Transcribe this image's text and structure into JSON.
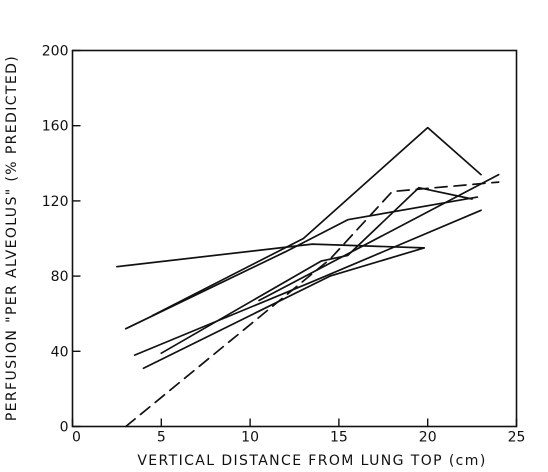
{
  "chart_data": {
    "type": "line",
    "title": "",
    "xlabel": "VERTICAL DISTANCE FROM LUNG TOP (cm)",
    "ylabel": "PERFUSION \"PER ALVEOLUS\" (% PREDICTED)",
    "xlim": [
      0,
      25
    ],
    "ylim": [
      0,
      200
    ],
    "xticks": [
      0,
      5,
      10,
      15,
      20,
      25
    ],
    "yticks": [
      0,
      40,
      80,
      120,
      160,
      200
    ],
    "grid": false,
    "series": [
      {
        "style": "solid",
        "x": [
          2.5,
          13.5,
          19.8
        ],
        "y": [
          85,
          97,
          95
        ]
      },
      {
        "style": "solid",
        "x": [
          3.0,
          12.0,
          15.5,
          22.8
        ],
        "y": [
          52,
          93,
          110,
          122
        ]
      },
      {
        "style": "solid",
        "x": [
          4.5,
          13.0,
          20.0,
          23.0
        ],
        "y": [
          59,
          100,
          159,
          134
        ]
      },
      {
        "style": "solid",
        "x": [
          5.0,
          14.0,
          15.5,
          19.5,
          22.5
        ],
        "y": [
          39,
          88,
          91,
          127,
          121
        ]
      },
      {
        "style": "solid",
        "x": [
          4.0,
          14.5,
          19.8
        ],
        "y": [
          31,
          80,
          95
        ]
      },
      {
        "style": "solid",
        "x": [
          3.5,
          13.5,
          23.0
        ],
        "y": [
          38,
          77,
          115
        ]
      },
      {
        "style": "solid",
        "x": [
          10.5,
          24.0
        ],
        "y": [
          67,
          134
        ]
      },
      {
        "style": "dashed",
        "x": [
          3.0,
          14.5,
          18.0,
          24.0
        ],
        "y": [
          0,
          89,
          125,
          130
        ]
      }
    ]
  }
}
